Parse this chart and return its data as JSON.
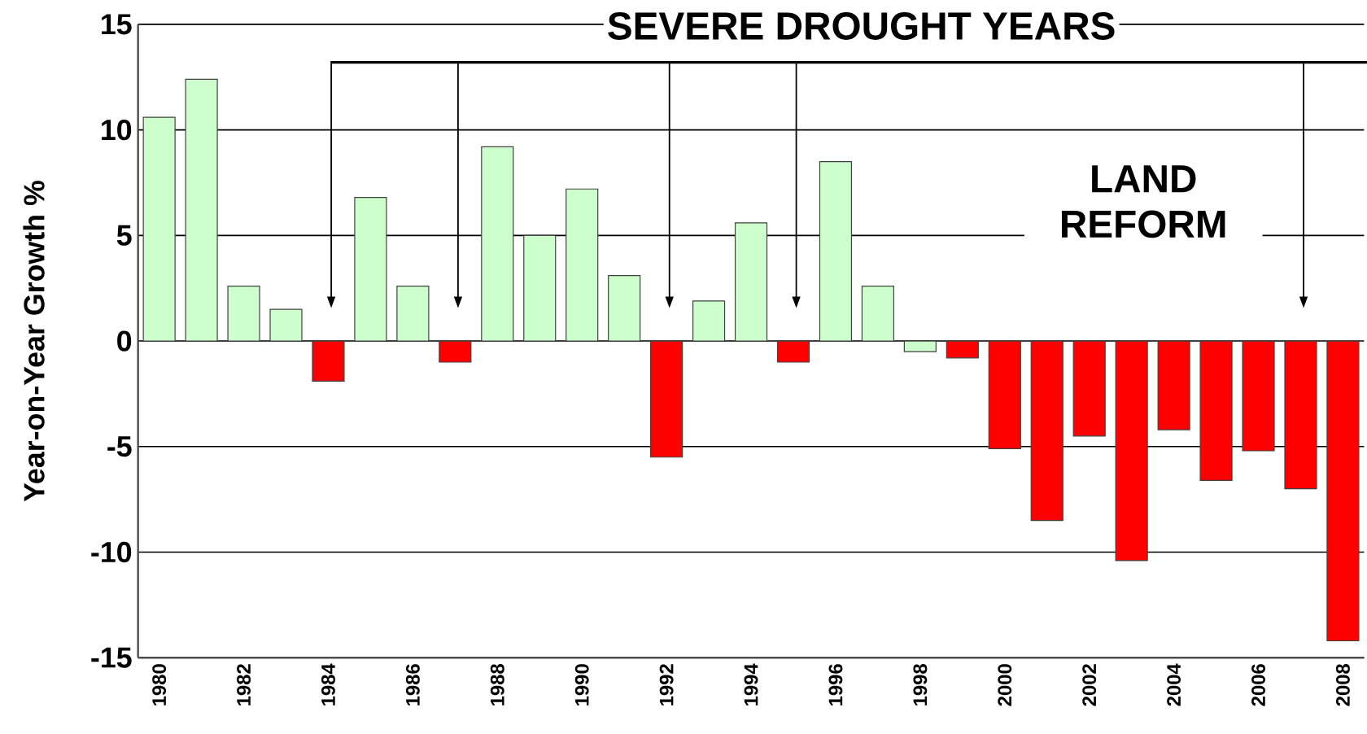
{
  "chart_data": {
    "type": "bar",
    "title": "SEVERE DROUGHT YEARS",
    "ylabel": "Year-on-Year Growth %",
    "categories": [
      "1980",
      null,
      "1982",
      null,
      "1984",
      null,
      "1986",
      null,
      "1988",
      null,
      "1990",
      null,
      "1992",
      null,
      "1994",
      null,
      "1996",
      null,
      "1998",
      null,
      "2000",
      null,
      "2002",
      null,
      "2004",
      null,
      "2006",
      null,
      "2008"
    ],
    "values": [
      10.6,
      12.4,
      2.6,
      1.5,
      -1.9,
      6.8,
      2.6,
      -1.0,
      9.2,
      5.0,
      7.2,
      3.1,
      -5.5,
      1.9,
      5.6,
      -1.0,
      8.5,
      2.6,
      -0.5,
      -0.8,
      -5.1,
      -8.5,
      -4.5,
      -10.4,
      -4.2,
      -6.6,
      -5.2,
      -7.0,
      -14.2
    ],
    "colors": [
      "#ccffcc",
      "#ccffcc",
      "#ccffcc",
      "#ccffcc",
      "#ff0000",
      "#ccffcc",
      "#ccffcc",
      "#ff0000",
      "#ccffcc",
      "#ccffcc",
      "#ccffcc",
      "#ccffcc",
      "#ff0000",
      "#ccffcc",
      "#ccffcc",
      "#ff0000",
      "#ccffcc",
      "#ccffcc",
      "#ccffcc",
      "#ff0000",
      "#ff0000",
      "#ff0000",
      "#ff0000",
      "#ff0000",
      "#ff0000",
      "#ff0000",
      "#ff0000",
      "#ff0000",
      "#ff0000"
    ],
    "ylim": [
      -15,
      15
    ],
    "yticks": [
      -15,
      -10,
      -5,
      0,
      5,
      10,
      15
    ],
    "grid": "y",
    "annotations": [
      "LAND REFORM"
    ]
  }
}
